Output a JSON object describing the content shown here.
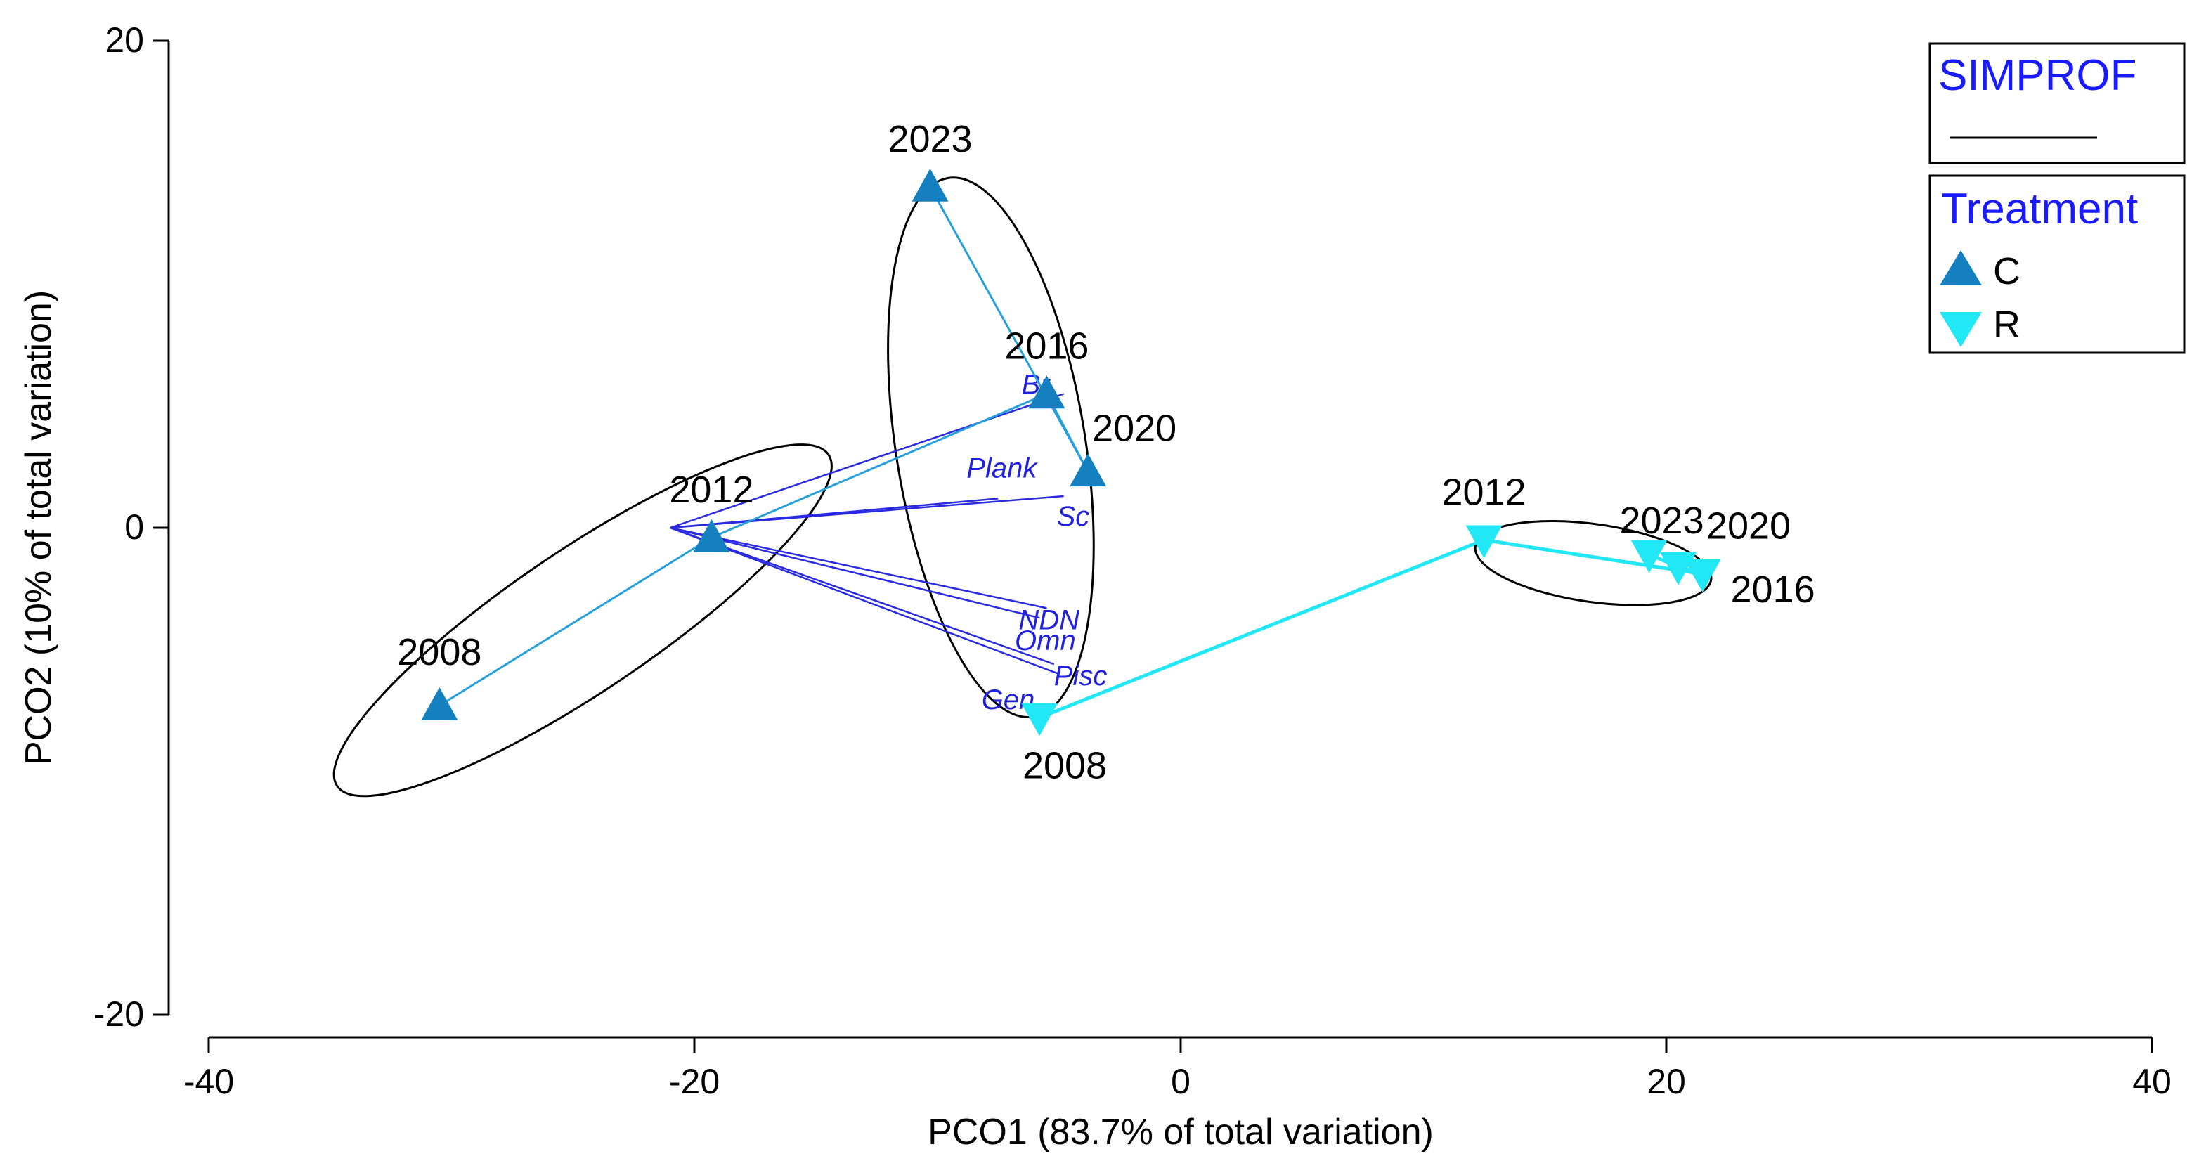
{
  "chart_data": {
    "type": "scatter",
    "xlabel": "PCO1 (83.7% of total variation)",
    "ylabel": "PCO2 (10% of total variation)",
    "xlim": [
      -40,
      40
    ],
    "ylim": [
      -20,
      20
    ],
    "xticks": [
      "-40",
      "-20",
      "0",
      "20",
      "40"
    ],
    "yticks": [
      "-20",
      "0",
      "20"
    ],
    "legend": {
      "simprof_title": "SIMPROF",
      "treatment_title": "Treatment",
      "entries": [
        {
          "label": "C",
          "marker": "triangle-up",
          "color": "#1580c0"
        },
        {
          "label": "R",
          "marker": "triangle-down",
          "color": "#22e8f5"
        }
      ]
    },
    "series": [
      {
        "name": "C",
        "color": "#1580c0",
        "line_color": "#25a0dc",
        "points": [
          {
            "year": "2008",
            "x": -30.5,
            "y": -7.3
          },
          {
            "year": "2012",
            "x": -19.3,
            "y": -0.4
          },
          {
            "year": "2016",
            "x": -5.5,
            "y": 5.5
          },
          {
            "year": "2020",
            "x": -3.8,
            "y": 2.3
          },
          {
            "year": "2023",
            "x": -10.3,
            "y": 14.0
          }
        ]
      },
      {
        "name": "R",
        "color": "#22e8f5",
        "line_color": "#22e8f5",
        "points": [
          {
            "year": "2008",
            "x": -5.8,
            "y": -7.8
          },
          {
            "year": "2012",
            "x": 12.5,
            "y": -0.5
          },
          {
            "year": "2016",
            "x": 21.5,
            "y": -1.9
          },
          {
            "year": "2020",
            "x": 20.5,
            "y": -1.6
          },
          {
            "year": "2023",
            "x": 19.3,
            "y": -1.1
          }
        ]
      }
    ],
    "vectors": {
      "origin": [
        -21,
        0
      ],
      "color": "#2a2ae0",
      "items": [
        {
          "label": "Br",
          "x": -4.8,
          "y": 5.5
        },
        {
          "label": "Plank",
          "x": -7.5,
          "y": 1.2
        },
        {
          "label": "Sc",
          "x": -4.8,
          "y": 1.3
        },
        {
          "label": "NDN",
          "x": -5.5,
          "y": -3.3
        },
        {
          "label": "Omn",
          "x": -5.8,
          "y": -3.7
        },
        {
          "label": "Pisc",
          "x": -5.2,
          "y": -5.6
        },
        {
          "label": "Gen",
          "x": -5.0,
          "y": -6.0
        }
      ]
    },
    "ellipses": [
      {
        "name": "cluster-C-early",
        "cx": -24.6,
        "cy": -3.8,
        "rx": 12.2,
        "ry": 2.9,
        "angle_deg": -34,
        "note": "data units approx"
      },
      {
        "name": "cluster-mid",
        "cx": -7.8,
        "cy": 3.3,
        "rx": 3.9,
        "ry": 11.2,
        "angle_deg": -9,
        "note": "data units approx"
      },
      {
        "name": "cluster-R-late",
        "cx": 17.0,
        "cy": -1.45,
        "rx": 4.9,
        "ry": 1.6,
        "angle_deg": 8,
        "note": "data units approx"
      }
    ]
  }
}
